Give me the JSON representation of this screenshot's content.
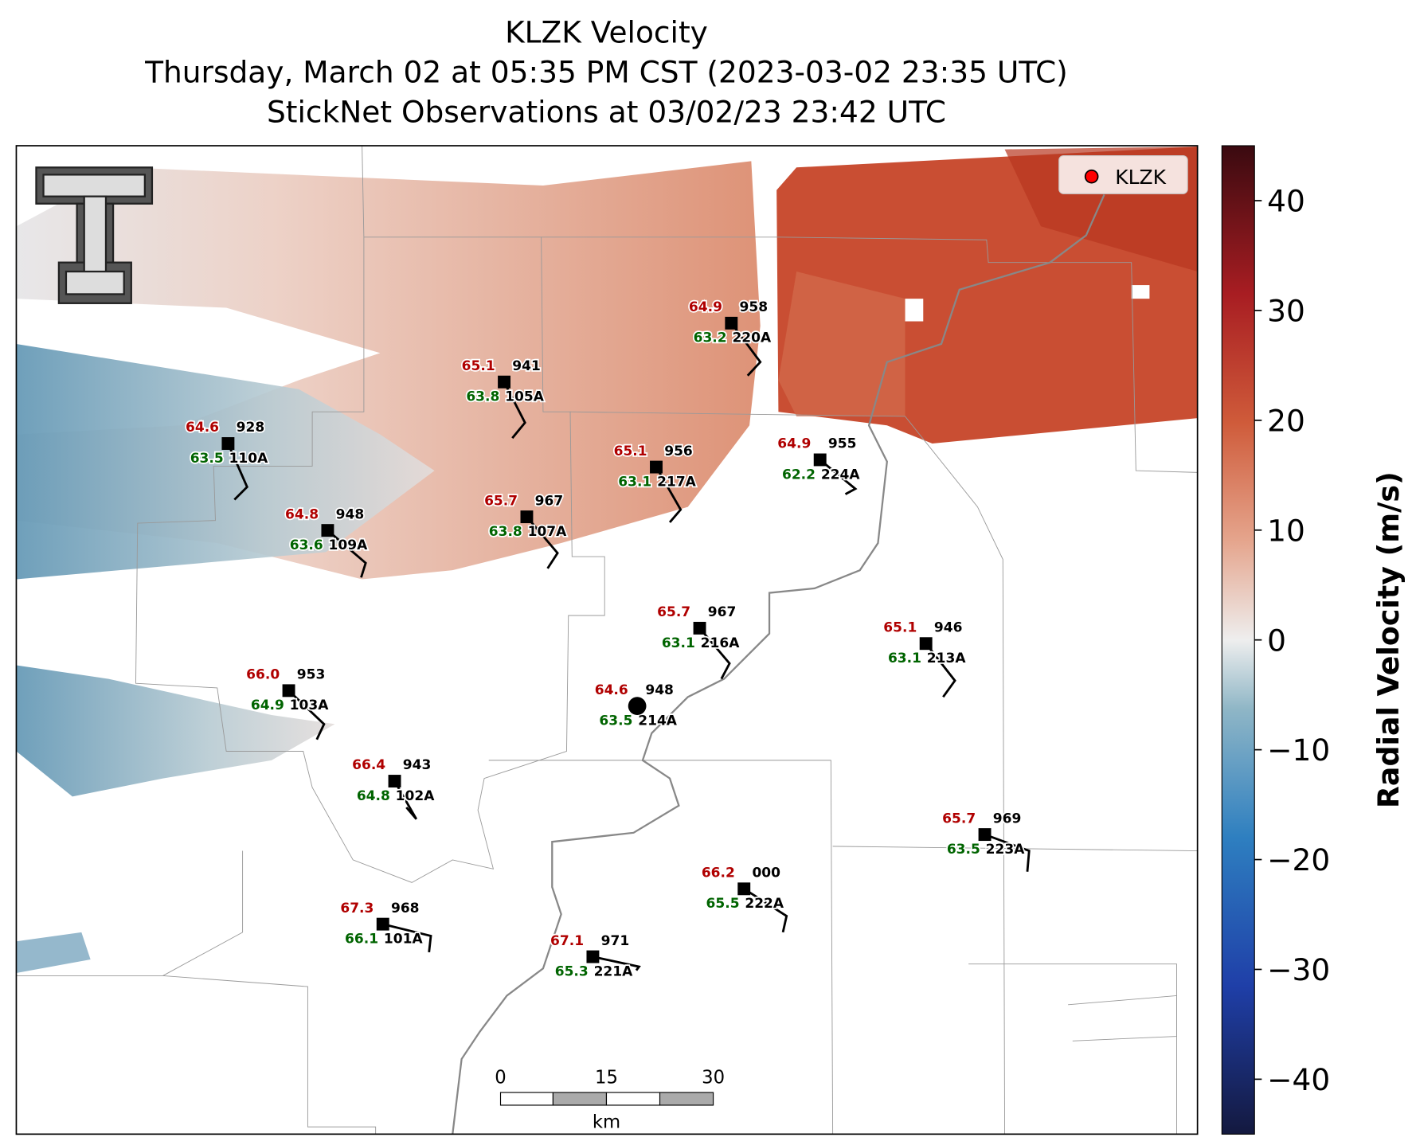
{
  "header": {
    "title": "KLZK Velocity",
    "subtitle": "Thursday, March 02 at 05:35 PM CST (2023-03-02 23:35 UTC)",
    "obs_line": "StickNet Observations at 03/02/23 23:42 UTC"
  },
  "legend": {
    "label": "KLZK"
  },
  "colorbar": {
    "label": "Radial Velocity (m/s)",
    "lim": [
      -45,
      45
    ],
    "ticks": [
      {
        "value": -40,
        "label": "−40"
      },
      {
        "value": -30,
        "label": "−30"
      },
      {
        "value": -20,
        "label": "−20"
      },
      {
        "value": -10,
        "label": "−10"
      },
      0,
      10,
      20,
      30,
      40
    ]
  },
  "scale_bar": {
    "labels": [
      "0",
      "15",
      "30"
    ],
    "unit": "km"
  },
  "stations": [
    {
      "id": "220A",
      "temp": "64.9",
      "dew": "63.2",
      "pres": "958"
    },
    {
      "id": "105A",
      "temp": "65.1",
      "dew": "63.8",
      "pres": "941"
    },
    {
      "id": "110A",
      "temp": "64.6",
      "dew": "63.5",
      "pres": "928"
    },
    {
      "id": "217A",
      "temp": "65.1",
      "dew": "63.1",
      "pres": "956"
    },
    {
      "id": "224A",
      "temp": "64.9",
      "dew": "62.2",
      "pres": "955"
    },
    {
      "id": "107A",
      "temp": "65.7",
      "dew": "63.8",
      "pres": "967"
    },
    {
      "id": "109A",
      "temp": "64.8",
      "dew": "63.6",
      "pres": "948"
    },
    {
      "id": "216A",
      "temp": "65.7",
      "dew": "63.1",
      "pres": "967"
    },
    {
      "id": "213A",
      "temp": "65.1",
      "dew": "63.1",
      "pres": "946"
    },
    {
      "id": "103A",
      "temp": "66.0",
      "dew": "64.9",
      "pres": "953"
    },
    {
      "id": "214A",
      "temp": "64.6",
      "dew": "63.5",
      "pres": "948"
    },
    {
      "id": "102A",
      "temp": "66.4",
      "dew": "64.8",
      "pres": "943"
    },
    {
      "id": "223A",
      "temp": "65.7",
      "dew": "63.5",
      "pres": "969"
    },
    {
      "id": "222A",
      "temp": "66.2",
      "dew": "65.5",
      "pres": "000"
    },
    {
      "id": "101A",
      "temp": "67.3",
      "dew": "66.1",
      "pres": "968"
    },
    {
      "id": "221A",
      "temp": "67.1",
      "dew": "65.3",
      "pres": "971"
    }
  ]
}
